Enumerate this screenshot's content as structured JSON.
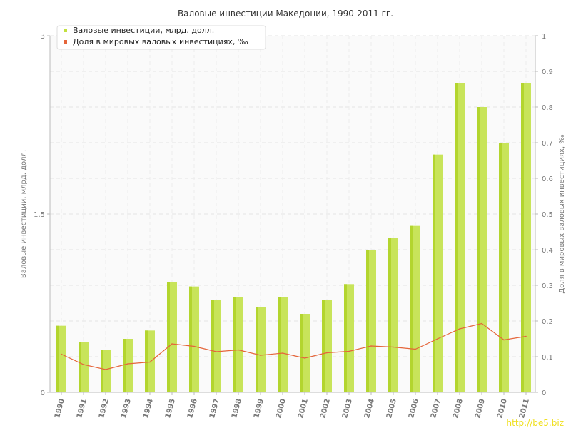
{
  "chart_data": {
    "type": "bar",
    "title": "Валовые инвестиции Македонии, 1990-2011 гг.",
    "categories": [
      "1990",
      "1991",
      "1992",
      "1993",
      "1994",
      "1995",
      "1996",
      "1997",
      "1998",
      "1999",
      "2000",
      "2001",
      "2002",
      "2003",
      "2004",
      "2005",
      "2006",
      "2007",
      "2008",
      "2009",
      "2010",
      "2011"
    ],
    "series": [
      {
        "name": "Валовые инвестиции, млрд. долл.",
        "axis": "left",
        "type": "bar",
        "color": "#c2e03f",
        "values": [
          0.56,
          0.42,
          0.36,
          0.45,
          0.52,
          0.93,
          0.89,
          0.78,
          0.8,
          0.72,
          0.8,
          0.66,
          0.78,
          0.91,
          1.2,
          1.3,
          1.4,
          2.0,
          2.6,
          2.4,
          2.1,
          2.6
        ]
      },
      {
        "name": "Доля в мировых валовых инвестициях, ‰",
        "axis": "right",
        "type": "line",
        "color": "#e5653a",
        "values": [
          0.107,
          0.078,
          0.064,
          0.08,
          0.085,
          0.136,
          0.129,
          0.114,
          0.119,
          0.104,
          0.11,
          0.096,
          0.111,
          0.115,
          0.13,
          0.127,
          0.121,
          0.15,
          0.178,
          0.193,
          0.147,
          0.157
        ]
      }
    ],
    "ylabel": "Валовые инвестиции, млрд. долл.",
    "y2label": "Доля в мировых валовых инвестициях, ‰",
    "ylim": [
      0,
      3
    ],
    "y2lim": [
      0,
      1
    ],
    "yticks": [
      "0",
      "1.5",
      "3"
    ],
    "y2ticks": [
      "0",
      "0.1",
      "0.2",
      "0.3",
      "0.4",
      "0.5",
      "0.6",
      "0.7",
      "0.8",
      "0.9",
      "1"
    ],
    "grid": true,
    "legend": "top-left"
  },
  "watermark": "http://be5.biz"
}
